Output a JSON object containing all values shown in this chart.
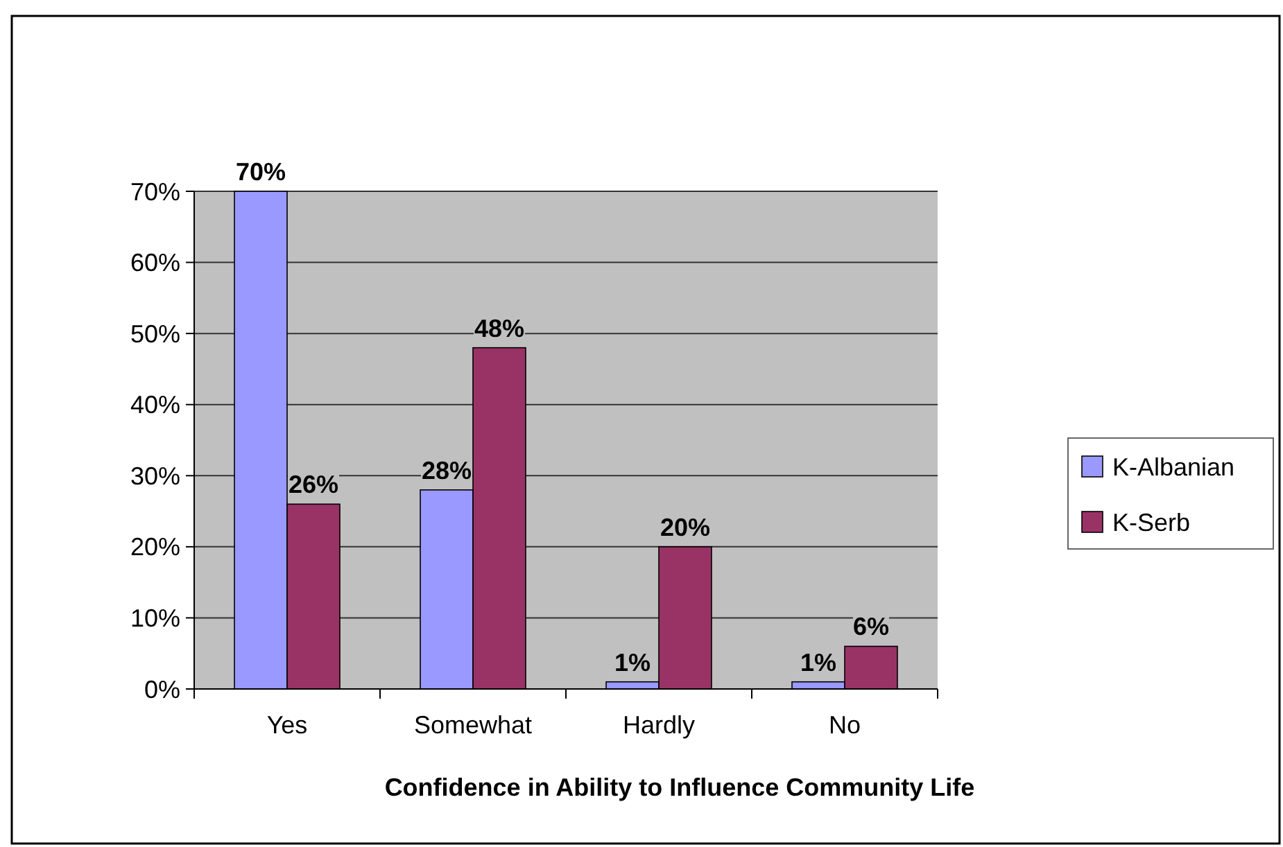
{
  "chart_data": {
    "type": "bar",
    "xlabel": "Confidence in Ability to Influence Community Life",
    "categories": [
      "Yes",
      "Somewhat",
      "Hardly",
      "No"
    ],
    "series": [
      {
        "name": "K-Albanian",
        "color": "#9999ff",
        "values": [
          70,
          28,
          1,
          1
        ],
        "value_labels": [
          "70%",
          "28%",
          "1%",
          "1%"
        ]
      },
      {
        "name": "K-Serb",
        "color": "#993366",
        "values": [
          26,
          48,
          20,
          6
        ],
        "value_labels": [
          "26%",
          "48%",
          "20%",
          "6%"
        ]
      }
    ],
    "ylim": [
      0,
      70
    ],
    "yticks": [
      {
        "value": 0,
        "label": "0%"
      },
      {
        "value": 10,
        "label": "10%"
      },
      {
        "value": 20,
        "label": "20%"
      },
      {
        "value": 30,
        "label": "30%"
      },
      {
        "value": 40,
        "label": "40%"
      },
      {
        "value": 50,
        "label": "50%"
      },
      {
        "value": 60,
        "label": "60%"
      },
      {
        "value": 70,
        "label": "70%"
      }
    ],
    "grid": "y",
    "legend": "right"
  }
}
